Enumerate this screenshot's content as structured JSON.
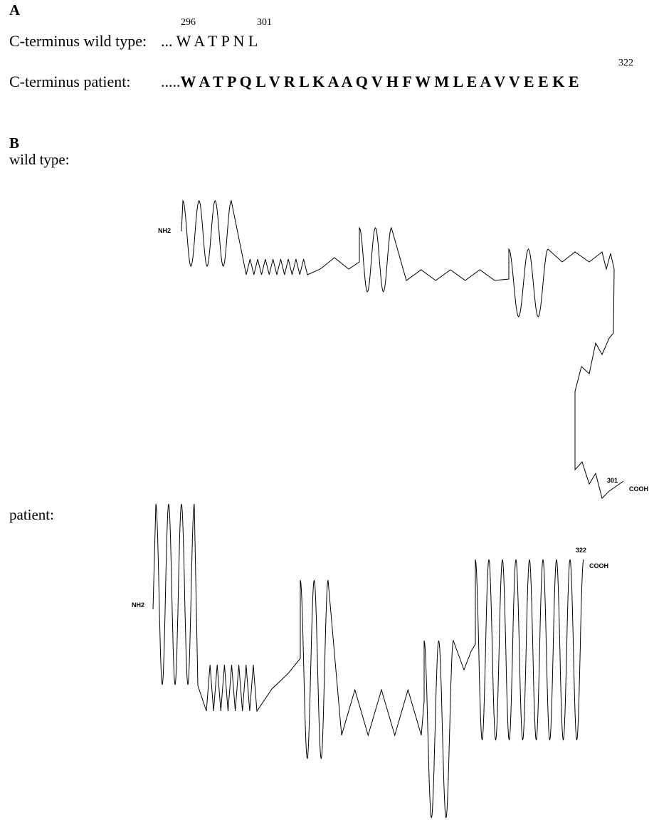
{
  "panel_a": {
    "letter": "A",
    "wild_type": {
      "label": "C-terminus wild type:",
      "prefix": "...",
      "residues": [
        "W",
        "A",
        "T",
        "P",
        "N",
        "L"
      ],
      "start_number": "296",
      "end_number": "301"
    },
    "patient": {
      "label": "C-terminus patient:",
      "prefix": ".....",
      "residues": [
        "W",
        "A",
        "T",
        "P"
      ],
      "mutant_residues": [
        "Q",
        "L",
        "V",
        "R",
        "L",
        "K",
        "A",
        "A",
        "Q",
        "V",
        "H",
        "F",
        "W",
        "M",
        "L",
        "E",
        "A",
        "V",
        "V",
        "E",
        "E",
        "K",
        "E"
      ],
      "end_number": "322"
    }
  },
  "panel_b": {
    "letter": "B",
    "wild_type": {
      "label": "wild type:",
      "n_term": "NH2",
      "c_term": "COOH",
      "end_number": "301"
    },
    "patient": {
      "label": "patient:",
      "n_term": "NH2",
      "c_term": "COOH",
      "end_number": "322"
    }
  }
}
